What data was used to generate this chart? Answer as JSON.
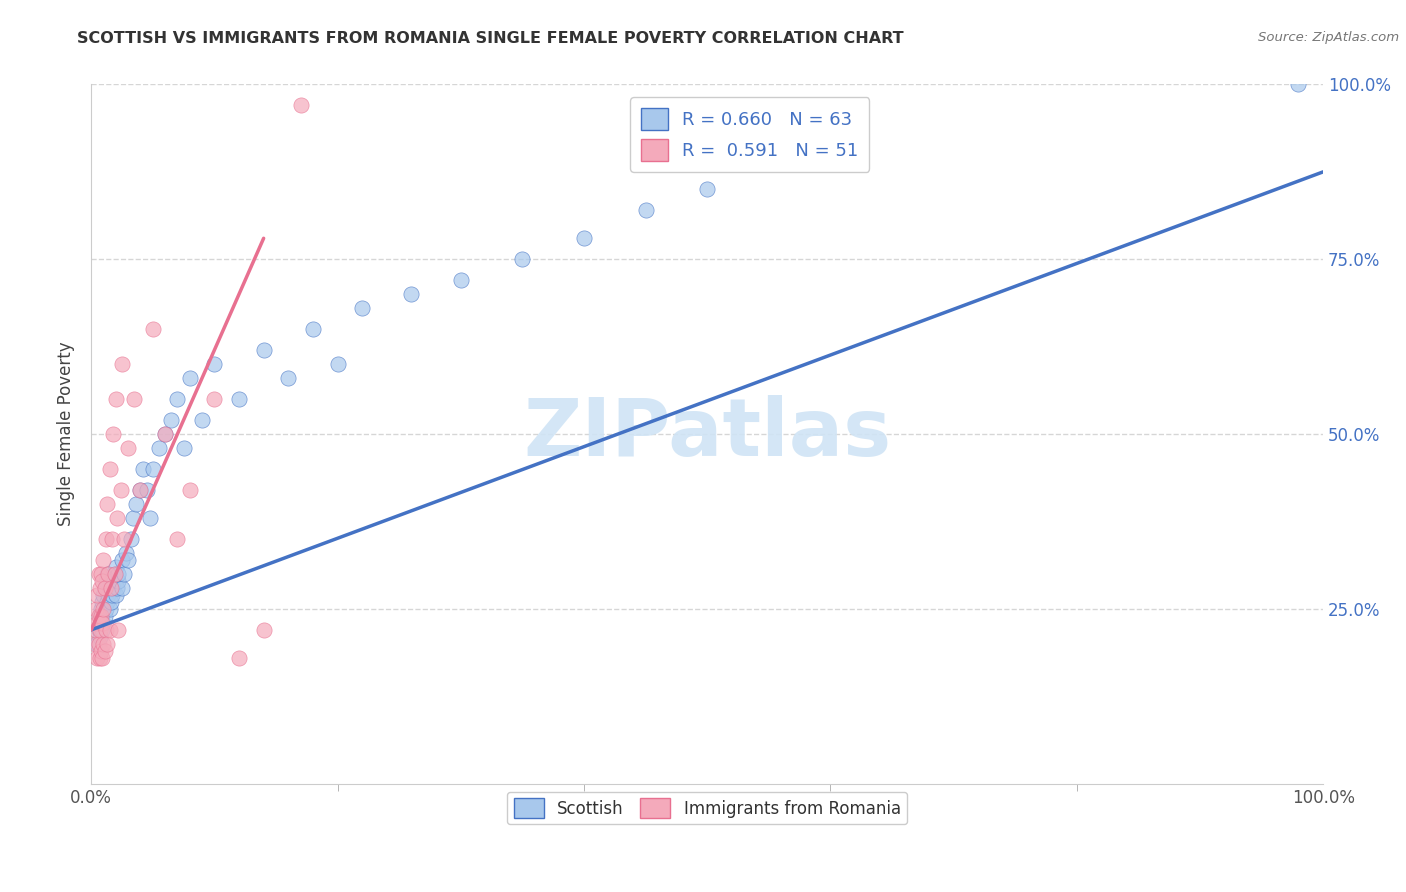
{
  "title": "SCOTTISH VS IMMIGRANTS FROM ROMANIA SINGLE FEMALE POVERTY CORRELATION CHART",
  "source": "Source: ZipAtlas.com",
  "ylabel": "Single Female Poverty",
  "xlim": [
    0.0,
    1.0
  ],
  "ylim": [
    0.0,
    1.0
  ],
  "watermark": "ZIPatlas",
  "legend_blue_label": "Scottish",
  "legend_pink_label": "Immigrants from Romania",
  "R_blue": 0.66,
  "N_blue": 63,
  "R_pink": 0.591,
  "N_pink": 51,
  "blue_color": "#A8C8EC",
  "pink_color": "#F4AABB",
  "blue_line_color": "#4472C4",
  "pink_line_color": "#E87090",
  "grid_color": "#CCCCCC",
  "background_color": "#FFFFFF",
  "watermark_color": "#D0E4F5",
  "blue_line_x0": 0.0,
  "blue_line_y0": 0.22,
  "blue_line_x1": 1.0,
  "blue_line_y1": 0.875,
  "pink_line_x0": 0.0,
  "pink_line_y0": 0.22,
  "pink_line_x1": 0.14,
  "pink_line_y1": 0.78,
  "scottish_x": [
    0.005,
    0.006,
    0.007,
    0.007,
    0.008,
    0.008,
    0.009,
    0.009,
    0.01,
    0.01,
    0.011,
    0.011,
    0.012,
    0.012,
    0.013,
    0.013,
    0.014,
    0.015,
    0.015,
    0.016,
    0.016,
    0.017,
    0.018,
    0.019,
    0.02,
    0.02,
    0.021,
    0.022,
    0.022,
    0.025,
    0.025,
    0.027,
    0.028,
    0.03,
    0.032,
    0.034,
    0.036,
    0.04,
    0.042,
    0.045,
    0.048,
    0.05,
    0.055,
    0.06,
    0.065,
    0.07,
    0.075,
    0.08,
    0.09,
    0.1,
    0.12,
    0.14,
    0.16,
    0.18,
    0.2,
    0.22,
    0.26,
    0.3,
    0.35,
    0.4,
    0.45,
    0.5,
    0.98
  ],
  "scottish_y": [
    0.2,
    0.22,
    0.21,
    0.24,
    0.23,
    0.25,
    0.22,
    0.26,
    0.23,
    0.27,
    0.24,
    0.28,
    0.25,
    0.29,
    0.26,
    0.3,
    0.27,
    0.25,
    0.28,
    0.26,
    0.29,
    0.27,
    0.28,
    0.3,
    0.27,
    0.31,
    0.28,
    0.29,
    0.3,
    0.28,
    0.32,
    0.3,
    0.33,
    0.32,
    0.35,
    0.38,
    0.4,
    0.42,
    0.45,
    0.42,
    0.38,
    0.45,
    0.48,
    0.5,
    0.52,
    0.55,
    0.48,
    0.58,
    0.52,
    0.6,
    0.55,
    0.62,
    0.58,
    0.65,
    0.6,
    0.68,
    0.7,
    0.72,
    0.75,
    0.78,
    0.82,
    0.85,
    1.0
  ],
  "romania_x": [
    0.003,
    0.004,
    0.004,
    0.005,
    0.005,
    0.005,
    0.006,
    0.006,
    0.006,
    0.007,
    0.007,
    0.007,
    0.008,
    0.008,
    0.008,
    0.009,
    0.009,
    0.009,
    0.01,
    0.01,
    0.01,
    0.011,
    0.011,
    0.012,
    0.012,
    0.013,
    0.013,
    0.014,
    0.015,
    0.015,
    0.016,
    0.017,
    0.018,
    0.019,
    0.02,
    0.021,
    0.022,
    0.024,
    0.025,
    0.027,
    0.03,
    0.035,
    0.04,
    0.05,
    0.06,
    0.07,
    0.08,
    0.1,
    0.12,
    0.14,
    0.17
  ],
  "romania_y": [
    0.2,
    0.22,
    0.25,
    0.18,
    0.23,
    0.27,
    0.2,
    0.24,
    0.3,
    0.18,
    0.22,
    0.28,
    0.19,
    0.24,
    0.3,
    0.18,
    0.23,
    0.29,
    0.2,
    0.25,
    0.32,
    0.19,
    0.28,
    0.22,
    0.35,
    0.2,
    0.4,
    0.3,
    0.22,
    0.45,
    0.28,
    0.35,
    0.5,
    0.3,
    0.55,
    0.38,
    0.22,
    0.42,
    0.6,
    0.35,
    0.48,
    0.55,
    0.42,
    0.65,
    0.5,
    0.35,
    0.42,
    0.55,
    0.18,
    0.22,
    0.97
  ]
}
